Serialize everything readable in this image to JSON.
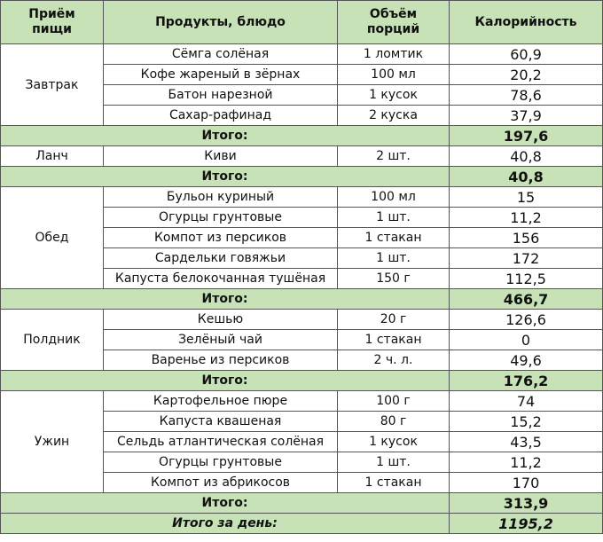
{
  "header": {
    "meal_line1": "Приём",
    "meal_line2": "пищи",
    "product": "Продукты, блюдо",
    "portion_line1": "Объём",
    "portion_line2": "порций",
    "calories": "Калорийность"
  },
  "meals": [
    {
      "name": "Завтрак",
      "rows": [
        {
          "product": "Сёмга солёная",
          "portion": "1 ломтик",
          "calories": "60,9"
        },
        {
          "product": "Кофе жареный в зёрнах",
          "portion": "100 мл",
          "calories": "20,2"
        },
        {
          "product": "Батон нарезной",
          "portion": "1 кусок",
          "calories": "78,6"
        },
        {
          "product": "Сахар-рафинад",
          "portion": "2 куска",
          "calories": "37,9"
        }
      ],
      "total_label": "Итого:",
      "total": "197,6"
    },
    {
      "name": "Ланч",
      "rows": [
        {
          "product": "Киви",
          "portion": "2 шт.",
          "calories": "40,8"
        }
      ],
      "total_label": "Итого:",
      "total": "40,8"
    },
    {
      "name": "Обед",
      "rows": [
        {
          "product": "Бульон куриный",
          "portion": "100 мл",
          "calories": "15"
        },
        {
          "product": "Огурцы грунтовые",
          "portion": "1 шт.",
          "calories": "11,2"
        },
        {
          "product": "Компот из персиков",
          "portion": "1 стакан",
          "calories": "156"
        },
        {
          "product": "Сардельки говяжьи",
          "portion": "1 шт.",
          "calories": "172"
        },
        {
          "product": "Капуста белокочанная тушёная",
          "portion": "150 г",
          "calories": "112,5"
        }
      ],
      "total_label": "Итого:",
      "total": "466,7"
    },
    {
      "name": "Полдник",
      "rows": [
        {
          "product": "Кешью",
          "portion": "20 г",
          "calories": "126,6"
        },
        {
          "product": "Зелёный чай",
          "portion": "1 стакан",
          "calories": "0"
        },
        {
          "product": "Варенье из персиков",
          "portion": "2 ч. л.",
          "calories": "49,6"
        }
      ],
      "total_label": "Итого:",
      "total": "176,2"
    },
    {
      "name": "Ужин",
      "rows": [
        {
          "product": "Картофельное пюре",
          "portion": "100 г",
          "calories": "74"
        },
        {
          "product": "Капуста квашеная",
          "portion": "80 г",
          "calories": "15,2"
        },
        {
          "product": "Сельдь атлантическая солёная",
          "portion": "1 кусок",
          "calories": "43,5"
        },
        {
          "product": "Огурцы грунтовые",
          "portion": "1 шт.",
          "calories": "11,2"
        },
        {
          "product": "Компот из абрикосов",
          "portion": "1 стакан",
          "calories": "170"
        }
      ],
      "total_label": "Итого:",
      "total": "313,9"
    }
  ],
  "grand_total": {
    "label": "Итого за день:",
    "value": "1195,2"
  },
  "colors": {
    "header_bg": "#c6e2b6",
    "border": "#555555"
  }
}
